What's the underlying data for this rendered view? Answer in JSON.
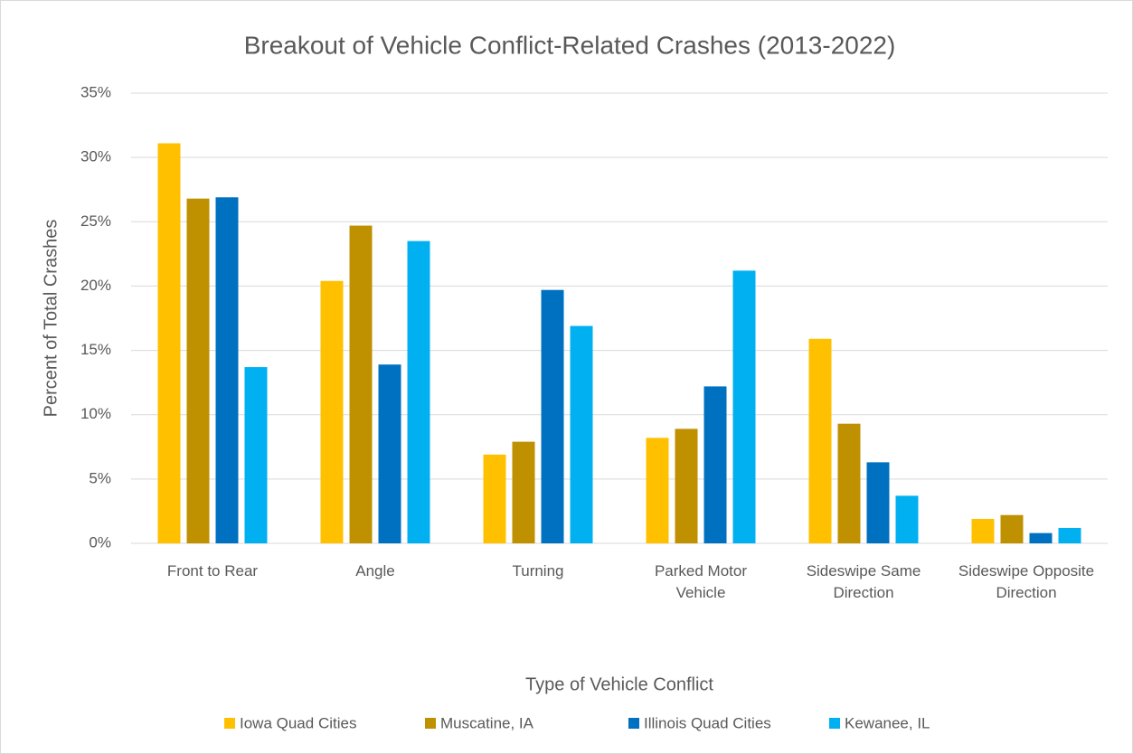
{
  "chart_data": {
    "type": "bar",
    "title": "Breakout of Vehicle Conflict-Related Crashes (2013-2022)",
    "x_label": "Type of Vehicle Conflict",
    "y_label": "Percent of Total Crashes",
    "categories": [
      "Front to Rear",
      "Angle",
      "Turning",
      "Parked Motor Vehicle",
      "Sideswipe Same Direction",
      "Sideswipe Opposite Direction"
    ],
    "series": [
      {
        "name": "Iowa Quad Cities",
        "color": "#ffc000",
        "values": [
          31.1,
          20.4,
          6.9,
          8.2,
          15.9,
          1.9
        ]
      },
      {
        "name": "Muscatine, IA",
        "color": "#bf9000",
        "values": [
          26.8,
          24.7,
          7.9,
          8.9,
          9.3,
          2.2
        ]
      },
      {
        "name": "Illinois Quad Cities",
        "color": "#0070c0",
        "values": [
          26.9,
          13.9,
          19.7,
          12.2,
          6.3,
          0.8
        ]
      },
      {
        "name": "Kewanee, IL",
        "color": "#00b0f0",
        "values": [
          13.7,
          23.5,
          16.9,
          21.2,
          3.7,
          1.2
        ]
      }
    ],
    "ylim": [
      0,
      35
    ],
    "yticks": [
      {
        "value": 0,
        "label": "0%"
      },
      {
        "value": 5,
        "label": "5%"
      },
      {
        "value": 10,
        "label": "10%"
      },
      {
        "value": 15,
        "label": "15%"
      },
      {
        "value": 20,
        "label": "20%"
      },
      {
        "value": 25,
        "label": "25%"
      },
      {
        "value": 30,
        "label": "30%"
      },
      {
        "value": 35,
        "label": "35%"
      }
    ],
    "grid": true,
    "legend": "bottom"
  }
}
